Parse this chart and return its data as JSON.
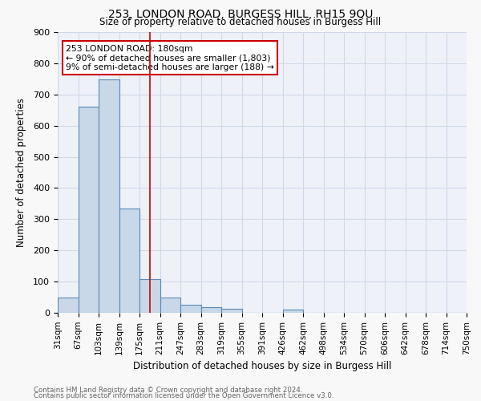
{
  "title1": "253, LONDON ROAD, BURGESS HILL, RH15 9QU",
  "title2": "Size of property relative to detached houses in Burgess Hill",
  "xlabel": "Distribution of detached houses by size in Burgess Hill",
  "ylabel": "Number of detached properties",
  "bin_labels": [
    "31sqm",
    "67sqm",
    "103sqm",
    "139sqm",
    "175sqm",
    "211sqm",
    "247sqm",
    "283sqm",
    "319sqm",
    "355sqm",
    "391sqm",
    "426sqm",
    "462sqm",
    "498sqm",
    "534sqm",
    "570sqm",
    "606sqm",
    "642sqm",
    "678sqm",
    "714sqm",
    "750sqm"
  ],
  "bar_values": [
    50,
    660,
    748,
    335,
    108,
    50,
    25,
    17,
    12,
    0,
    0,
    10,
    0,
    0,
    0,
    0,
    0,
    0,
    0,
    0
  ],
  "bar_color": "#c8d8e8",
  "bar_edge_color": "#5a8ab5",
  "vline_x": 4.5,
  "vline_color": "#cc0000",
  "annotation_text": "253 LONDON ROAD: 180sqm\n← 90% of detached houses are smaller (1,803)\n9% of semi-detached houses are larger (188) →",
  "annotation_box_color": "#ffffff",
  "annotation_box_edge": "#cc0000",
  "ylim": [
    0,
    900
  ],
  "yticks": [
    0,
    100,
    200,
    300,
    400,
    500,
    600,
    700,
    800,
    900
  ],
  "grid_color": "#d0d8e8",
  "bg_color": "#eef2f8",
  "fig_color": "#f8f8f8",
  "footer1": "Contains HM Land Registry data © Crown copyright and database right 2024.",
  "footer2": "Contains public sector information licensed under the Open Government Licence v3.0."
}
